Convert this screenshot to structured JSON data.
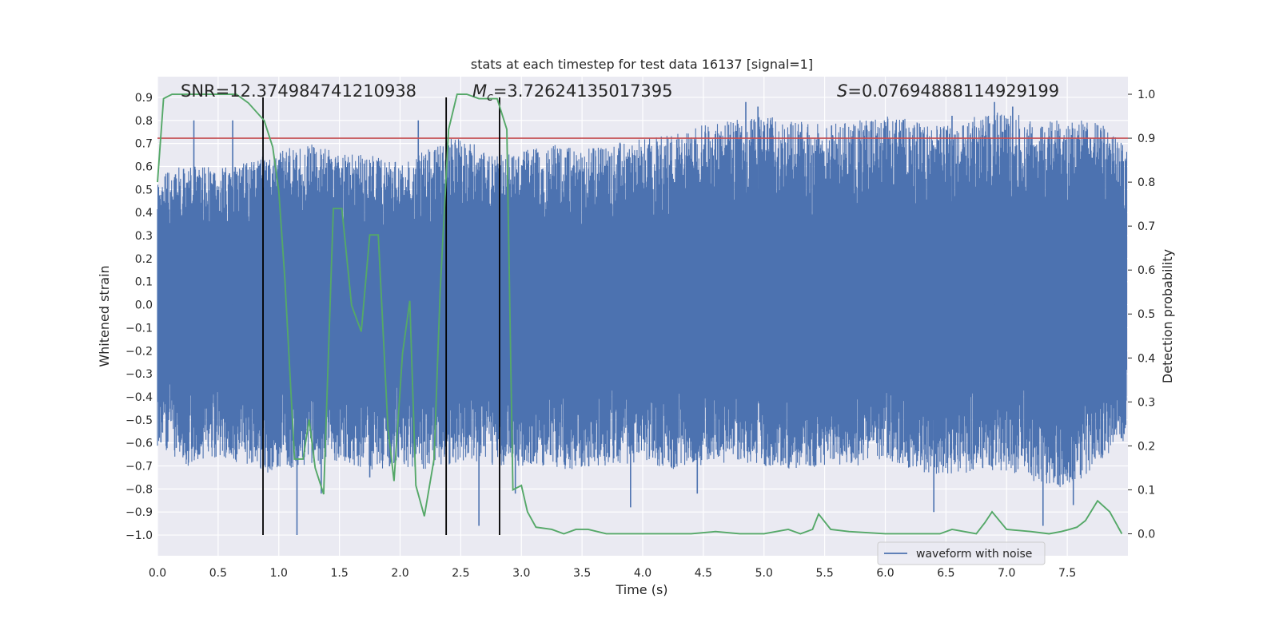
{
  "chart_data": {
    "type": "line",
    "title": "stats at each timestep for test data 16137 [signal=1]",
    "xlabel": "Time (s)",
    "ylabel": "Whitened strain",
    "y2label": "Detection probability",
    "xlim": [
      0.0,
      8.0
    ],
    "ylim": [
      -1.09,
      0.99
    ],
    "y2lim": [
      -0.05,
      1.04
    ],
    "x_ticks": [
      "0.0",
      "0.5",
      "1.0",
      "1.5",
      "2.0",
      "2.5",
      "3.0",
      "3.5",
      "4.0",
      "4.5",
      "5.0",
      "5.5",
      "6.0",
      "6.5",
      "7.0",
      "7.5"
    ],
    "y_ticks": [
      "0.9",
      "0.8",
      "0.7",
      "0.6",
      "0.5",
      "0.4",
      "0.3",
      "0.2",
      "0.1",
      "0.0",
      "−0.1",
      "−0.2",
      "−0.3",
      "−0.4",
      "−0.5",
      "−0.6",
      "−0.7",
      "−0.8",
      "−0.9",
      "−1.0"
    ],
    "y2_ticks": [
      "1.0",
      "0.9",
      "0.8",
      "0.7",
      "0.6",
      "0.5",
      "0.4",
      "0.3",
      "0.2",
      "0.1",
      "0.0"
    ],
    "grid": true,
    "legend_position": "lower-right",
    "annotations": {
      "snr": "SNR=12.374984741210938",
      "mc_symbol": "M",
      "mc_sub": "c",
      "mc_value": "=3.72624135017395",
      "s_symbol": "S",
      "s_value": "=0.07694888114929199"
    },
    "threshold": {
      "value": 0.9,
      "axis": "right",
      "color": "#c44e52"
    },
    "vertical_lines": [
      0.87,
      2.38,
      2.82
    ],
    "series": [
      {
        "name": "waveform with noise",
        "axis": "left",
        "color": "#4c72b0",
        "envelope": {
          "x": [
            0.0,
            0.25,
            0.5,
            0.75,
            1.0,
            1.25,
            1.5,
            1.75,
            2.0,
            2.25,
            2.5,
            2.75,
            3.0,
            3.25,
            3.5,
            3.75,
            4.0,
            4.25,
            4.5,
            4.75,
            5.0,
            5.25,
            5.5,
            5.75,
            6.0,
            6.25,
            6.5,
            6.75,
            7.0,
            7.25,
            7.5,
            7.75,
            7.99
          ],
          "upper": [
            0.55,
            0.62,
            0.6,
            0.62,
            0.67,
            0.7,
            0.66,
            0.65,
            0.62,
            0.68,
            0.74,
            0.65,
            0.67,
            0.7,
            0.68,
            0.7,
            0.72,
            0.75,
            0.78,
            0.8,
            0.82,
            0.8,
            0.78,
            0.8,
            0.82,
            0.8,
            0.78,
            0.82,
            0.84,
            0.8,
            0.8,
            0.8,
            0.68
          ],
          "lower": [
            -0.62,
            -0.7,
            -0.66,
            -0.7,
            -0.75,
            -0.7,
            -0.68,
            -0.72,
            -0.7,
            -0.72,
            -0.68,
            -0.7,
            -0.7,
            -0.72,
            -0.72,
            -0.7,
            -0.68,
            -0.72,
            -0.7,
            -0.68,
            -0.7,
            -0.72,
            -0.7,
            -0.7,
            -0.68,
            -0.72,
            -0.75,
            -0.72,
            -0.72,
            -0.78,
            -0.8,
            -0.7,
            -0.58
          ]
        },
        "spikes": [
          [
            0.3,
            0.8
          ],
          [
            0.62,
            0.8
          ],
          [
            1.15,
            -1.0
          ],
          [
            1.35,
            -0.82
          ],
          [
            1.75,
            -0.75
          ],
          [
            2.15,
            0.8
          ],
          [
            2.35,
            0.66
          ],
          [
            2.65,
            -0.96
          ],
          [
            2.95,
            -0.82
          ],
          [
            3.9,
            -0.88
          ],
          [
            4.45,
            -0.82
          ],
          [
            4.85,
            0.88
          ],
          [
            4.95,
            0.86
          ],
          [
            5.3,
            0.75
          ],
          [
            6.4,
            -0.9
          ],
          [
            6.55,
            0.82
          ],
          [
            6.9,
            0.88
          ],
          [
            7.05,
            0.86
          ],
          [
            7.3,
            -0.96
          ],
          [
            7.55,
            -0.87
          ],
          [
            7.65,
            0.72
          ],
          [
            7.85,
            0.7
          ]
        ]
      },
      {
        "name": "",
        "axis": "right",
        "color": "#55a868",
        "x": [
          0.0,
          0.05,
          0.12,
          0.3,
          0.5,
          0.65,
          0.75,
          0.88,
          0.95,
          1.0,
          1.05,
          1.13,
          1.2,
          1.25,
          1.3,
          1.37,
          1.45,
          1.52,
          1.6,
          1.68,
          1.75,
          1.82,
          1.9,
          1.95,
          2.02,
          2.08,
          2.13,
          2.2,
          2.28,
          2.33,
          2.4,
          2.47,
          2.55,
          2.65,
          2.72,
          2.8,
          2.88,
          2.93,
          3.0,
          3.05,
          3.12,
          3.25,
          3.35,
          3.45,
          3.55,
          3.7,
          3.8,
          4.0,
          4.2,
          4.4,
          4.6,
          4.8,
          5.0,
          5.1,
          5.2,
          5.3,
          5.4,
          5.45,
          5.55,
          5.7,
          6.0,
          6.3,
          6.45,
          6.55,
          6.65,
          6.75,
          6.82,
          6.88,
          7.0,
          7.2,
          7.35,
          7.45,
          7.52,
          7.58,
          7.65,
          7.75,
          7.85,
          7.95
        ],
        "values": [
          0.8,
          0.99,
          1.0,
          1.0,
          1.0,
          1.0,
          0.98,
          0.94,
          0.88,
          0.78,
          0.58,
          0.17,
          0.17,
          0.26,
          0.15,
          0.09,
          0.74,
          0.74,
          0.52,
          0.46,
          0.68,
          0.68,
          0.24,
          0.12,
          0.41,
          0.53,
          0.11,
          0.04,
          0.17,
          0.55,
          0.92,
          1.0,
          1.0,
          0.99,
          0.99,
          0.99,
          0.92,
          0.1,
          0.11,
          0.05,
          0.015,
          0.01,
          0.0,
          0.01,
          0.01,
          0.0,
          0.0,
          0.0,
          0.0,
          0.0,
          0.005,
          0.0,
          0.0,
          0.005,
          0.01,
          0.0,
          0.01,
          0.045,
          0.01,
          0.005,
          0.0,
          0.0,
          0.0,
          0.01,
          0.005,
          0.0,
          0.025,
          0.05,
          0.01,
          0.005,
          0.0,
          0.005,
          0.01,
          0.015,
          0.03,
          0.075,
          0.05,
          0.0
        ]
      }
    ]
  }
}
